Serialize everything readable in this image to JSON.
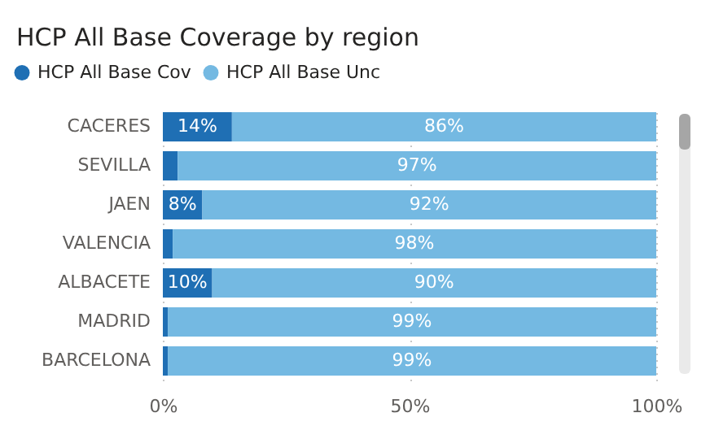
{
  "chart_data": {
    "type": "bar",
    "title": "HCP All Base Coverage by region",
    "orientation": "horizontal",
    "stacked": true,
    "categories": [
      "CACERES",
      "SEVILLA",
      "JAEN",
      "VALENCIA",
      "ALBACETE",
      "MADRID",
      "BARCELONA"
    ],
    "series": [
      {
        "name": "HCP All Base Cov",
        "color": "#1f6fb4",
        "values": [
          14,
          3,
          8,
          2,
          10,
          1,
          1
        ],
        "value_labels": [
          "14%",
          null,
          "8%",
          null,
          "10%",
          null,
          null
        ]
      },
      {
        "name": "HCP All Base Unc",
        "color": "#74b9e2",
        "values": [
          86,
          97,
          92,
          98,
          90,
          99,
          99
        ],
        "value_labels": [
          "86%",
          "97%",
          "92%",
          "98%",
          "90%",
          "99%",
          "99%"
        ]
      }
    ],
    "xlim": [
      0,
      100
    ],
    "xticks": [
      {
        "value": 0,
        "label": "0%"
      },
      {
        "value": 50,
        "label": "50%"
      },
      {
        "value": 100,
        "label": "100%"
      }
    ],
    "grid": "x",
    "legend": "top left"
  }
}
